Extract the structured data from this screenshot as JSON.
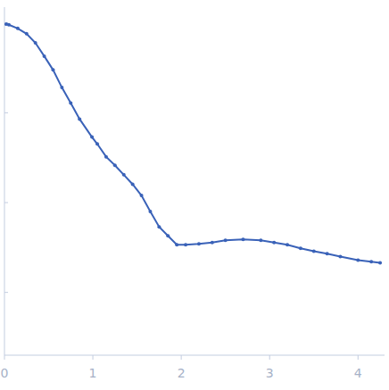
{
  "chart_data": {
    "type": "line",
    "log": "y",
    "tick_labels": "x",
    "marker": "circle",
    "x": [
      0.02,
      0.05,
      0.15,
      0.25,
      0.35,
      0.45,
      0.55,
      0.65,
      0.75,
      0.85,
      0.99,
      1.05,
      1.15,
      1.25,
      1.35,
      1.45,
      1.55,
      1.65,
      1.75,
      1.85,
      1.95,
      2.05,
      2.2,
      2.35,
      2.5,
      2.7,
      2.9,
      3.05,
      3.2,
      3.35,
      3.5,
      3.65,
      3.8,
      4.0,
      4.15,
      4.25
    ],
    "series": [
      {
        "color": "#3a62b8",
        "values": [
          0.97,
          0.955,
          0.87,
          0.759,
          0.6,
          0.427,
          0.3,
          0.191,
          0.128,
          0.0851,
          0.0537,
          0.045,
          0.0324,
          0.026,
          0.0204,
          0.016,
          0.012,
          0.00794,
          0.00537,
          0.00427,
          0.00339,
          0.0034,
          0.00347,
          0.0036,
          0.0038,
          0.0039,
          0.0038,
          0.0036,
          0.00339,
          0.0031,
          0.00288,
          0.0027,
          0.00251,
          0.00229,
          0.0022,
          0.00214
        ]
      }
    ],
    "xlim": [
      0,
      4.3
    ],
    "xticks": [
      0,
      1,
      2,
      3,
      4
    ],
    "ylim": [
      0.0002,
      1.5
    ],
    "yticks": [
      0.001,
      0.01,
      0.1,
      1
    ]
  }
}
